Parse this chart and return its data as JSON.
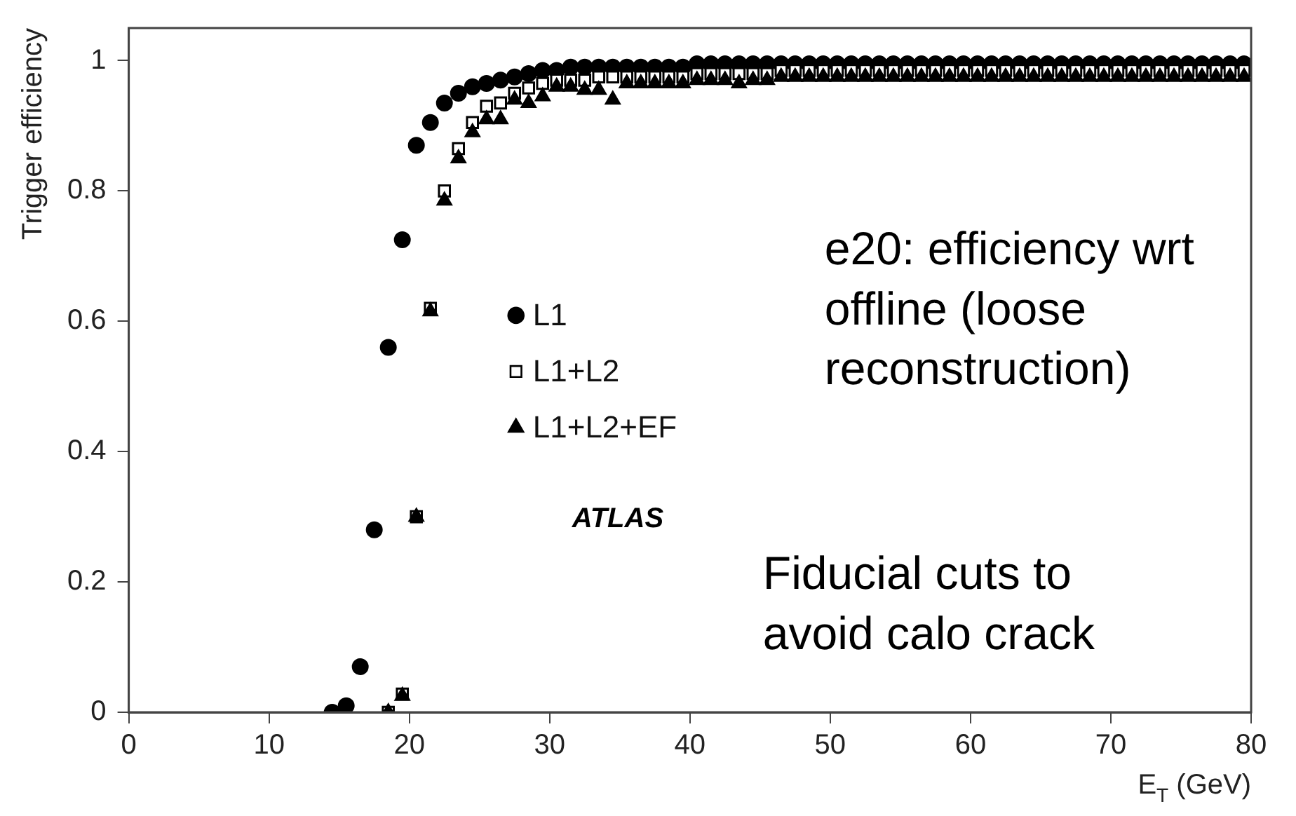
{
  "chart_data": {
    "type": "scatter",
    "xlabel": "E$_{T}$ (GeV)",
    "ylabel": "Trigger efficiency",
    "xlim": [
      0,
      80
    ],
    "xticks": [
      0,
      10,
      20,
      30,
      40,
      50,
      60,
      70,
      80
    ],
    "ylim": [
      0,
      1.05
    ],
    "yticks": [
      0,
      0.2,
      0.4,
      0.6,
      0.8,
      1
    ],
    "grid": false,
    "legend": "left",
    "annotations": [
      "e20: efficiency wrt offline (loose reconstruction)",
      "ATLAS",
      "Fiducial cuts to avoid calo crack"
    ],
    "series": [
      {
        "name": "L1",
        "color": "#000000",
        "marker": "circle",
        "x": [
          14.5,
          15.5,
          16.5,
          17.5,
          18.5,
          19.5,
          20.5,
          21.5,
          22.5,
          23.5,
          24.5,
          25.5,
          26.5,
          27.5,
          28.5,
          29.5,
          30.5,
          31.5,
          32.5,
          33.5,
          34.5,
          35.5,
          36.5,
          37.5,
          38.5,
          39.5,
          40.5,
          41.5,
          42.5,
          43.5,
          44.5,
          45.5,
          46.5,
          47.5,
          48.5,
          49.5,
          50.5,
          51.5,
          52.5,
          53.5,
          54.5,
          55.5,
          56.5,
          57.5,
          58.5,
          59.5,
          60.5,
          61.5,
          62.5,
          63.5,
          64.5,
          65.5,
          66.5,
          67.5,
          68.5,
          69.5,
          70.5,
          71.5,
          72.5,
          73.5,
          74.5,
          75.5,
          76.5,
          77.5,
          78.5,
          79.5
        ],
        "values": [
          0.0,
          0.01,
          0.07,
          0.28,
          0.56,
          0.725,
          0.87,
          0.905,
          0.935,
          0.95,
          0.96,
          0.965,
          0.97,
          0.975,
          0.98,
          0.985,
          0.985,
          0.99,
          0.99,
          0.99,
          0.99,
          0.99,
          0.99,
          0.99,
          0.99,
          0.99,
          0.995,
          0.995,
          0.995,
          0.995,
          0.995,
          0.995,
          0.995,
          0.995,
          0.995,
          0.995,
          0.995,
          0.995,
          0.995,
          0.995,
          0.995,
          0.995,
          0.995,
          0.995,
          0.995,
          0.995,
          0.995,
          0.995,
          0.995,
          0.995,
          0.995,
          0.995,
          0.995,
          0.995,
          0.995,
          0.995,
          0.995,
          0.995,
          0.995,
          0.995,
          0.995,
          0.995,
          0.995,
          0.995,
          0.995,
          0.995
        ]
      },
      {
        "name": "L1+L2",
        "color": "#000000",
        "marker": "square",
        "x": [
          18.5,
          19.5,
          20.5,
          21.5,
          22.5,
          23.5,
          24.5,
          25.5,
          26.5,
          27.5,
          28.5,
          29.5,
          30.5,
          31.5,
          32.5,
          33.5,
          34.5,
          35.5,
          36.5,
          37.5,
          38.5,
          39.5,
          40.5,
          41.5,
          42.5,
          43.5,
          44.5,
          45.5,
          46.5,
          47.5,
          48.5,
          49.5,
          50.5,
          51.5,
          52.5,
          53.5,
          54.5,
          55.5,
          56.5,
          57.5,
          58.5,
          59.5,
          60.5,
          61.5,
          62.5,
          63.5,
          64.5,
          65.5,
          66.5,
          67.5,
          68.5,
          69.5,
          70.5,
          71.5,
          72.5,
          73.5,
          74.5,
          75.5,
          76.5,
          77.5,
          78.5,
          79.5
        ],
        "values": [
          0.0,
          0.028,
          0.3,
          0.62,
          0.8,
          0.865,
          0.905,
          0.93,
          0.935,
          0.95,
          0.958,
          0.965,
          0.97,
          0.97,
          0.97,
          0.975,
          0.975,
          0.975,
          0.975,
          0.975,
          0.975,
          0.975,
          0.98,
          0.98,
          0.98,
          0.98,
          0.98,
          0.98,
          0.985,
          0.985,
          0.985,
          0.985,
          0.985,
          0.985,
          0.985,
          0.985,
          0.985,
          0.985,
          0.985,
          0.985,
          0.985,
          0.985,
          0.985,
          0.985,
          0.985,
          0.985,
          0.985,
          0.985,
          0.985,
          0.985,
          0.985,
          0.985,
          0.985,
          0.985,
          0.985,
          0.985,
          0.985,
          0.985,
          0.985,
          0.985,
          0.985,
          0.985
        ]
      },
      {
        "name": "L1+L2+EF",
        "color": "#000000",
        "marker": "triangle",
        "x": [
          18.5,
          19.5,
          20.5,
          21.5,
          22.5,
          23.5,
          24.5,
          25.5,
          26.5,
          27.5,
          28.5,
          29.5,
          30.5,
          31.5,
          32.5,
          33.5,
          34.5,
          35.5,
          36.5,
          37.5,
          38.5,
          39.5,
          40.5,
          41.5,
          42.5,
          43.5,
          44.5,
          45.5,
          46.5,
          47.5,
          48.5,
          49.5,
          50.5,
          51.5,
          52.5,
          53.5,
          54.5,
          55.5,
          56.5,
          57.5,
          58.5,
          59.5,
          60.5,
          61.5,
          62.5,
          63.5,
          64.5,
          65.5,
          66.5,
          67.5,
          68.5,
          69.5,
          70.5,
          71.5,
          72.5,
          73.5,
          74.5,
          75.5,
          76.5,
          77.5,
          78.5,
          79.5
        ],
        "values": [
          0.0,
          0.025,
          0.3,
          0.615,
          0.785,
          0.85,
          0.89,
          0.91,
          0.91,
          0.94,
          0.935,
          0.945,
          0.96,
          0.96,
          0.955,
          0.955,
          0.94,
          0.965,
          0.965,
          0.965,
          0.965,
          0.965,
          0.97,
          0.97,
          0.97,
          0.965,
          0.97,
          0.97,
          0.975,
          0.975,
          0.975,
          0.975,
          0.975,
          0.975,
          0.975,
          0.975,
          0.975,
          0.975,
          0.975,
          0.975,
          0.975,
          0.975,
          0.975,
          0.975,
          0.975,
          0.975,
          0.975,
          0.975,
          0.975,
          0.975,
          0.975,
          0.975,
          0.975,
          0.975,
          0.975,
          0.975,
          0.975,
          0.975,
          0.975,
          0.975,
          0.975,
          0.975
        ]
      }
    ]
  }
}
